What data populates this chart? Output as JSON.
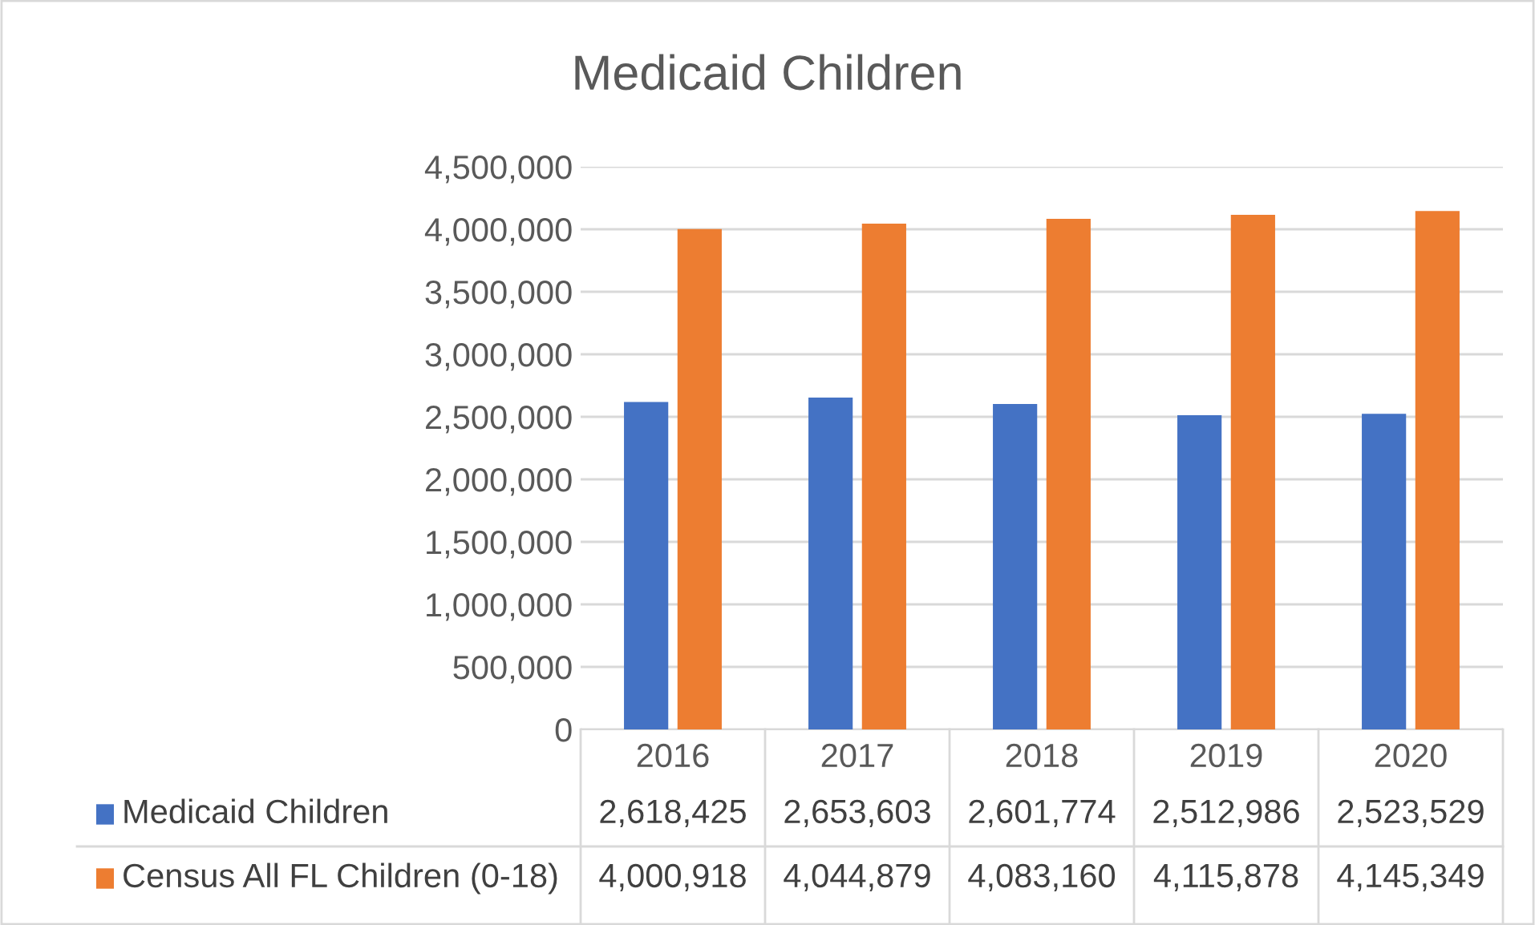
{
  "chart_data": {
    "type": "bar",
    "title": "Medicaid Children",
    "categories": [
      "2016",
      "2017",
      "2018",
      "2019",
      "2020"
    ],
    "series": [
      {
        "name": "Medicaid Children",
        "color": "#4472c4",
        "values": [
          2618425,
          2653603,
          2601774,
          2512986,
          2523529
        ],
        "value_labels": [
          "2,618,425",
          "2,653,603",
          "2,601,774",
          "2,512,986",
          "2,523,529"
        ]
      },
      {
        "name": "Census All FL Children (0-18)",
        "color": "#ed7d31",
        "values": [
          4000918,
          4044879,
          4083160,
          4115878,
          4145349
        ],
        "value_labels": [
          "4,000,918",
          "4,044,879",
          "4,083,160",
          "4,115,878",
          "4,145,349"
        ]
      }
    ],
    "ylim": [
      0,
      4500000
    ],
    "yticks": [
      {
        "value": 0,
        "label": "0"
      },
      {
        "value": 500000,
        "label": "500,000"
      },
      {
        "value": 1000000,
        "label": "1,000,000"
      },
      {
        "value": 1500000,
        "label": "1,500,000"
      },
      {
        "value": 2000000,
        "label": "2,000,000"
      },
      {
        "value": 2500000,
        "label": "2,500,000"
      },
      {
        "value": 3000000,
        "label": "3,000,000"
      },
      {
        "value": 3500000,
        "label": "3,500,000"
      },
      {
        "value": 4000000,
        "label": "4,000,000"
      },
      {
        "value": 4500000,
        "label": "4,500,000"
      }
    ],
    "grid": "y",
    "legend": "bottom"
  }
}
